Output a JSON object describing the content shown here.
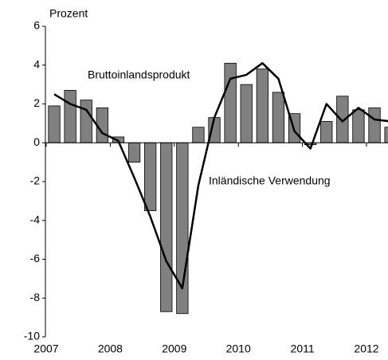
{
  "chart_data": {
    "type": "bar",
    "y_label": "Prozent",
    "annotations": [
      "Bruttoinlandsprodukt",
      "Inländische Verwendung"
    ],
    "categories": [
      "2007",
      null,
      null,
      null,
      "2008",
      null,
      null,
      null,
      "2009",
      null,
      null,
      null,
      "2010",
      null,
      null,
      null,
      "2011",
      null,
      null,
      null,
      "2012",
      null
    ],
    "series": [
      {
        "name": "Bruttoinlandsprodukt",
        "type": "bar",
        "color": "#808080",
        "values": [
          1.9,
          2.7,
          2.2,
          1.8,
          0.3,
          -1.0,
          -3.5,
          -8.7,
          -8.8,
          0.8,
          1.3,
          4.1,
          3.0,
          3.8,
          2.6,
          1.5,
          -0.1,
          1.1,
          2.4,
          1.7,
          1.8,
          0.8
        ]
      },
      {
        "name": "Inländische Verwendung",
        "type": "line",
        "color": "#000000",
        "values": [
          2.5,
          2.0,
          1.7,
          0.5,
          0.1,
          -1.8,
          -3.8,
          -6.1,
          -7.5,
          -2.2,
          1.3,
          3.3,
          3.5,
          4.1,
          3.3,
          0.6,
          -0.3,
          2.0,
          1.1,
          1.8,
          1.2,
          1.1
        ]
      }
    ],
    "ylim": [
      -10,
      6
    ],
    "yticks": [
      -10,
      -8,
      -6,
      -4,
      -2,
      0,
      2,
      4,
      6
    ]
  }
}
